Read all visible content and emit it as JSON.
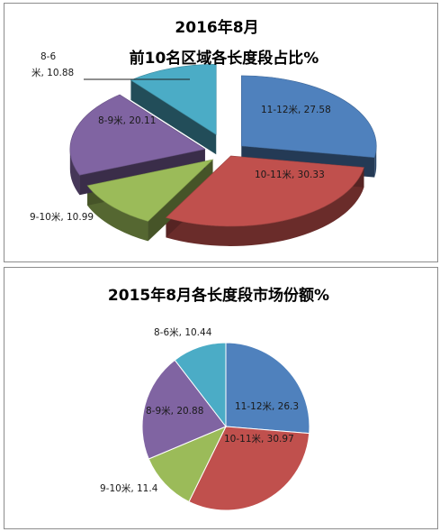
{
  "chart_data": [
    {
      "type": "pie",
      "style": "3d-exploded",
      "title_line1": "2016年8月",
      "title_line2": "前10名区域各长度段占比%",
      "slices": [
        {
          "name": "11-12米",
          "value": 27.58,
          "color": "#4f81bd",
          "label": "11-12米, 27.58"
        },
        {
          "name": "10-11米",
          "value": 30.33,
          "color": "#c0504d",
          "label": "10-11米, 30.33"
        },
        {
          "name": "9-10米",
          "value": 10.99,
          "color": "#9bbb59",
          "label": "9-10米, 10.99"
        },
        {
          "name": "8-9米",
          "value": 20.11,
          "color": "#8064a2",
          "label": "8-9米, 20.11"
        },
        {
          "name": "8-6米",
          "value": 10.88,
          "color": "#4bacc6",
          "label_line1": "8-6",
          "label_line2": "米, 10.88"
        }
      ]
    },
    {
      "type": "pie",
      "title": "2015年8月各长度段市场份额%",
      "slices": [
        {
          "name": "11-12米",
          "value": 26.3,
          "color": "#4f81bd",
          "label": "11-12米, 26.3"
        },
        {
          "name": "10-11米",
          "value": 30.97,
          "color": "#c0504d",
          "label": "10-11米, 30.97"
        },
        {
          "name": "9-10米",
          "value": 11.4,
          "color": "#9bbb59",
          "label": "9-10米, 11.4"
        },
        {
          "name": "8-9米",
          "value": 20.88,
          "color": "#8064a2",
          "label": "8-9米, 20.88"
        },
        {
          "name": "8-6米",
          "value": 10.44,
          "color": "#4bacc6",
          "label": "8-6米, 10.44"
        }
      ]
    }
  ]
}
